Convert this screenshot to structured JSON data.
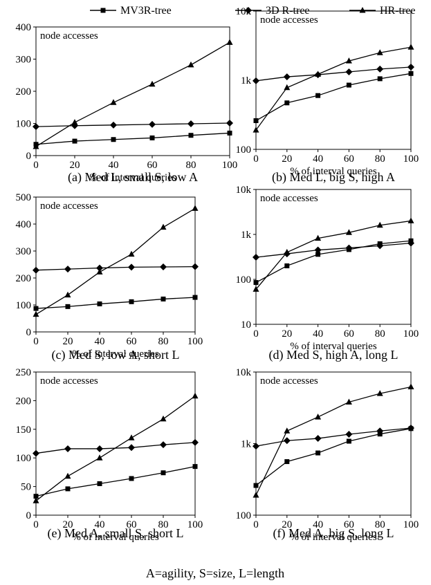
{
  "legend": {
    "placement": "top-center",
    "entries": [
      {
        "name": "MV3R-tree",
        "marker": "square"
      },
      {
        "name": "3D R-tree",
        "marker": "diamond"
      },
      {
        "name": "HR-tree",
        "marker": "triangle"
      }
    ]
  },
  "footer": "A=agility, S=size, L=length",
  "chart_data": [
    {
      "type": "line",
      "caption": "(a) Med L, small S, low A",
      "annotation": "node accesses",
      "xlabel": "% of interval queries",
      "x": [
        0,
        20,
        40,
        60,
        80,
        100
      ],
      "x_ticks": [
        0,
        20,
        40,
        60,
        80,
        100
      ],
      "y_scale": "linear",
      "ylim": [
        0,
        400
      ],
      "y_ticks": [
        0,
        100,
        200,
        300,
        400
      ],
      "y_tick_labels": [
        "0",
        "100",
        "200",
        "300",
        "400"
      ],
      "series": [
        {
          "name": "MV3R-tree",
          "marker": "square",
          "values": [
            35,
            45,
            50,
            55,
            63,
            70
          ]
        },
        {
          "name": "3D R-tree",
          "marker": "diamond",
          "values": [
            90,
            93,
            95,
            97,
            99,
            101
          ]
        },
        {
          "name": "HR-tree",
          "marker": "triangle",
          "values": [
            28,
            103,
            165,
            222,
            282,
            352
          ]
        }
      ]
    },
    {
      "type": "line",
      "caption": "(b) Med L, big S, high A",
      "annotation": "node accesses",
      "xlabel": "% of interval queries",
      "x": [
        0,
        20,
        40,
        60,
        80,
        100
      ],
      "x_ticks": [
        0,
        20,
        40,
        60,
        80,
        100
      ],
      "y_scale": "log",
      "ylim": [
        100,
        10000
      ],
      "y_ticks": [
        100,
        1000,
        10000
      ],
      "y_tick_labels": [
        "100",
        "1k",
        "10k"
      ],
      "series": [
        {
          "name": "MV3R-tree",
          "marker": "square",
          "values": [
            260,
            470,
            600,
            850,
            1050,
            1250
          ]
        },
        {
          "name": "3D R-tree",
          "marker": "diamond",
          "values": [
            980,
            1120,
            1200,
            1320,
            1450,
            1550
          ]
        },
        {
          "name": "HR-tree",
          "marker": "triangle",
          "values": [
            190,
            780,
            1220,
            1900,
            2500,
            3000
          ]
        }
      ]
    },
    {
      "type": "line",
      "caption": "(c) Med S, low A, short L",
      "annotation": "node accesses",
      "xlabel": "% of interval queries",
      "x": [
        0,
        20,
        40,
        60,
        80,
        100
      ],
      "x_ticks": [
        0,
        20,
        40,
        60,
        80,
        100
      ],
      "y_scale": "linear",
      "ylim": [
        0,
        500
      ],
      "y_ticks": [
        0,
        100,
        200,
        300,
        400,
        500
      ],
      "y_tick_labels": [
        "0",
        "100",
        "200",
        "300",
        "400",
        "500"
      ],
      "series": [
        {
          "name": "MV3R-tree",
          "marker": "square",
          "values": [
            87,
            94,
            104,
            112,
            122,
            128
          ]
        },
        {
          "name": "3D R-tree",
          "marker": "diamond",
          "values": [
            229,
            233,
            237,
            240,
            241,
            242
          ]
        },
        {
          "name": "HR-tree",
          "marker": "triangle",
          "values": [
            65,
            137,
            222,
            288,
            388,
            458
          ]
        }
      ]
    },
    {
      "type": "line",
      "caption": "(d) Med S, high A, long L",
      "annotation": "node accesses",
      "xlabel": "% of interval queries",
      "x": [
        0,
        20,
        40,
        60,
        80,
        100
      ],
      "x_ticks": [
        0,
        20,
        40,
        60,
        80,
        100
      ],
      "y_scale": "log",
      "ylim": [
        10,
        10000
      ],
      "y_ticks": [
        10,
        100,
        1000,
        10000
      ],
      "y_tick_labels": [
        "10",
        "100",
        "1k",
        "10k"
      ],
      "series": [
        {
          "name": "MV3R-tree",
          "marker": "square",
          "values": [
            85,
            200,
            360,
            460,
            620,
            720
          ]
        },
        {
          "name": "3D R-tree",
          "marker": "diamond",
          "values": [
            310,
            370,
            450,
            500,
            560,
            640
          ]
        },
        {
          "name": "HR-tree",
          "marker": "triangle",
          "values": [
            60,
            400,
            820,
            1100,
            1600,
            2000
          ]
        }
      ]
    },
    {
      "type": "line",
      "caption": "(e) Med A, small S, short L",
      "annotation": "node accesses",
      "xlabel": "% of interval queries",
      "x": [
        0,
        20,
        40,
        60,
        80,
        100
      ],
      "x_ticks": [
        0,
        20,
        40,
        60,
        80,
        100
      ],
      "y_scale": "linear",
      "ylim": [
        0,
        250
      ],
      "y_ticks": [
        0,
        50,
        100,
        150,
        200,
        250
      ],
      "y_tick_labels": [
        "0",
        "50",
        "100",
        "150",
        "200",
        "250"
      ],
      "series": [
        {
          "name": "MV3R-tree",
          "marker": "square",
          "values": [
            33,
            46,
            55,
            64,
            74,
            85
          ]
        },
        {
          "name": "3D R-tree",
          "marker": "diamond",
          "values": [
            108,
            116,
            116,
            118,
            123,
            127
          ]
        },
        {
          "name": "HR-tree",
          "marker": "triangle",
          "values": [
            25,
            68,
            100,
            135,
            168,
            208
          ]
        }
      ]
    },
    {
      "type": "line",
      "caption": "(f) Med A, big S, long L",
      "annotation": "node accesses",
      "xlabel": "% of interval queries",
      "x": [
        0,
        20,
        40,
        60,
        80,
        100
      ],
      "x_ticks": [
        0,
        20,
        40,
        60,
        80,
        100
      ],
      "y_scale": "log",
      "ylim": [
        100,
        10000
      ],
      "y_ticks": [
        100,
        1000,
        10000
      ],
      "y_tick_labels": [
        "100",
        "1k",
        "10k"
      ],
      "series": [
        {
          "name": "MV3R-tree",
          "marker": "square",
          "values": [
            260,
            560,
            740,
            1080,
            1360,
            1620
          ]
        },
        {
          "name": "3D R-tree",
          "marker": "diamond",
          "values": [
            920,
            1100,
            1180,
            1350,
            1500,
            1650
          ]
        },
        {
          "name": "HR-tree",
          "marker": "triangle",
          "values": [
            190,
            1500,
            2350,
            3800,
            5000,
            6200
          ]
        }
      ]
    }
  ]
}
